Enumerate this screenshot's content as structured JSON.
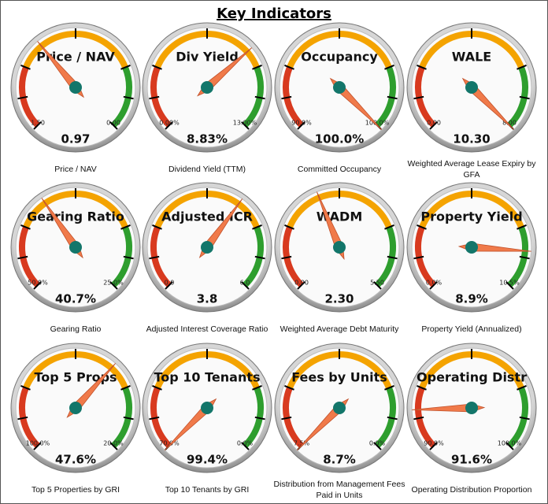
{
  "title": "Key Indicators",
  "chart_data": [
    {
      "type": "gauge",
      "title": "Price / NAV",
      "caption": "Price / NAV",
      "min": {
        "value": 1.5,
        "label": "1.50"
      },
      "max": {
        "value": 0,
        "label": "0.00"
      },
      "value": 0.97,
      "value_label": "0.97"
    },
    {
      "type": "gauge",
      "title": "Div Yield",
      "caption": "Dividend Yield (TTM)",
      "min": {
        "value": 0,
        "label": "0.00%"
      },
      "max": {
        "value": 13,
        "label": "13.00%"
      },
      "value": 8.83,
      "value_label": "8.83%"
    },
    {
      "type": "gauge",
      "title": "Occupancy",
      "caption": "Committed Occupancy",
      "min": {
        "value": 90,
        "label": "90.0%"
      },
      "max": {
        "value": 100,
        "label": "100.0%"
      },
      "value": 100,
      "value_label": "100.0%"
    },
    {
      "type": "gauge",
      "title": "WALE",
      "caption": "Weighted Average Lease Expiry by GFA",
      "min": {
        "value": 0,
        "label": "0.00"
      },
      "max": {
        "value": 8,
        "label": "8.00"
      },
      "value": 10.3,
      "value_label": "10.30"
    },
    {
      "type": "gauge",
      "title": "Gearing Ratio",
      "caption": "Gearing Ratio",
      "min": {
        "value": 50,
        "label": "50.0%"
      },
      "max": {
        "value": 25,
        "label": "25.0%"
      },
      "value": 40.7,
      "value_label": "40.7%"
    },
    {
      "type": "gauge",
      "title": "Adjusted ICR",
      "caption": "Adjusted Interest Coverage Ratio",
      "min": {
        "value": 0,
        "label": "0.0"
      },
      "max": {
        "value": 6,
        "label": "6.0"
      },
      "value": 3.8,
      "value_label": "3.8"
    },
    {
      "type": "gauge",
      "title": "WADM",
      "caption": "Weighted Average Debt Maturity",
      "min": {
        "value": 0,
        "label": "0.00"
      },
      "max": {
        "value": 5.5,
        "label": "5.50"
      },
      "value": 2.3,
      "value_label": "2.30"
    },
    {
      "type": "gauge",
      "title": "Property Yield",
      "caption": "Property Yield (Annualized)",
      "min": {
        "value": 0,
        "label": "0.0%"
      },
      "max": {
        "value": 10.5,
        "label": "10.5%"
      },
      "value": 8.9,
      "value_label": "8.9%"
    },
    {
      "type": "gauge",
      "title": "Top 5 Props",
      "caption": "Top 5 Properties by GRI",
      "min": {
        "value": 100,
        "label": "100.0%"
      },
      "max": {
        "value": 20,
        "label": "20.0%"
      },
      "value": 47.6,
      "value_label": "47.6%"
    },
    {
      "type": "gauge",
      "title": "Top 10 Tenants",
      "caption": "Top 10 Tenants by GRI",
      "min": {
        "value": 70,
        "label": "70.0%"
      },
      "max": {
        "value": 0,
        "label": "0.0%"
      },
      "value": 99.4,
      "value_label": "99.4%"
    },
    {
      "type": "gauge",
      "title": "Fees by Units",
      "caption": "Distribution from Management Fees Paid in Units",
      "min": {
        "value": 7.5,
        "label": "7.5%"
      },
      "max": {
        "value": 0,
        "label": "0.0%"
      },
      "value": 8.7,
      "value_label": "8.7%"
    },
    {
      "type": "gauge",
      "title": "Operating Distr",
      "caption": "Operating Distribution Proportion",
      "min": {
        "value": 90,
        "label": "90.0%"
      },
      "max": {
        "value": 100,
        "label": "100.0%"
      },
      "value": 91.6,
      "value_label": "91.6%"
    }
  ]
}
